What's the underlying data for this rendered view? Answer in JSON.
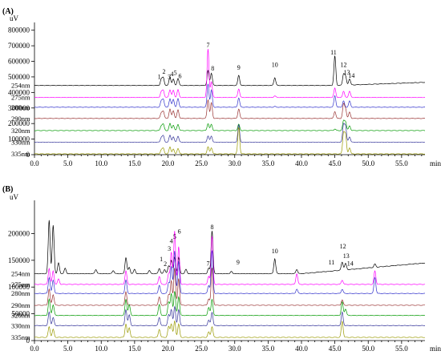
{
  "chart_data": [
    {
      "type": "line",
      "panel_label": "(A)",
      "ylabel": "uV",
      "xlabel": "min",
      "xlim": [
        0,
        58.5
      ],
      "ylim": [
        0,
        850000
      ],
      "x_ticks": [
        0.0,
        5.0,
        10.0,
        15.0,
        20.0,
        25.0,
        30.0,
        35.0,
        40.0,
        45.0,
        50.0,
        55.0
      ],
      "x_tick_labels": [
        "0.0",
        "5.0",
        "10.0",
        "15.0",
        "20.0",
        "25.0",
        "30.0",
        "35.0",
        "40.0",
        "45.0",
        "50.0",
        "55.0"
      ],
      "y_ticks": [
        0,
        100000,
        200000,
        300000,
        400000,
        500000,
        600000,
        700000,
        800000
      ],
      "y_tick_labels": [
        "0",
        "100000",
        "200000",
        "300000",
        "400000",
        "500000",
        "600000",
        "700000",
        "800000"
      ],
      "series": [
        {
          "name": "254nm",
          "color": "#000000",
          "baseline": 445000,
          "peaks": [
            [
              19.0,
              40000
            ],
            [
              19.3,
              48000
            ],
            [
              20.3,
              55000
            ],
            [
              20.8,
              40000
            ],
            [
              21.5,
              45000
            ],
            [
              26.0,
              95000
            ],
            [
              26.5,
              80000
            ],
            [
              30.6,
              65000
            ],
            [
              36.0,
              50000
            ],
            [
              45.0,
              190000
            ],
            [
              46.3,
              70000
            ],
            [
              46.6,
              55000
            ],
            [
              47.2,
              40000
            ]
          ],
          "drift": [
            [
              45.5,
              0
            ],
            [
              58.5,
              20000
            ]
          ]
        },
        {
          "name": "275nm",
          "color": "#ff00ff",
          "baseline": 368000,
          "peaks": [
            [
              19.0,
              35000
            ],
            [
              19.3,
              45000
            ],
            [
              20.3,
              50000
            ],
            [
              20.8,
              45000
            ],
            [
              21.5,
              50000
            ],
            [
              26.0,
              310000
            ],
            [
              26.5,
              100000
            ],
            [
              30.6,
              55000
            ],
            [
              36.0,
              10000
            ],
            [
              45.0,
              60000
            ],
            [
              46.3,
              40000
            ],
            [
              47.2,
              40000
            ]
          ],
          "drift": []
        },
        {
          "name": "280nm",
          "color": "#3333cc",
          "baseline": 305000,
          "peaks": [
            [
              19.0,
              40000
            ],
            [
              19.3,
              50000
            ],
            [
              20.3,
              55000
            ],
            [
              20.8,
              50000
            ],
            [
              21.5,
              55000
            ],
            [
              26.0,
              150000
            ],
            [
              26.5,
              110000
            ],
            [
              30.6,
              60000
            ],
            [
              36.0,
              5000
            ],
            [
              45.0,
              75000
            ],
            [
              46.3,
              40000
            ],
            [
              47.2,
              40000
            ]
          ],
          "drift": []
        },
        {
          "name": "290nm",
          "color": "#993333",
          "baseline": 233000,
          "peaks": [
            [
              19.0,
              35000
            ],
            [
              19.3,
              45000
            ],
            [
              20.3,
              60000
            ],
            [
              20.8,
              50000
            ],
            [
              21.5,
              55000
            ],
            [
              26.0,
              120000
            ],
            [
              26.5,
              100000
            ],
            [
              30.6,
              60000
            ],
            [
              45.0,
              45000
            ],
            [
              46.3,
              90000
            ],
            [
              46.6,
              60000
            ],
            [
              47.2,
              40000
            ]
          ],
          "drift": []
        },
        {
          "name": "320nm",
          "color": "#009900",
          "baseline": 155000,
          "peaks": [
            [
              19.0,
              30000
            ],
            [
              19.3,
              40000
            ],
            [
              20.3,
              45000
            ],
            [
              20.8,
              35000
            ],
            [
              21.5,
              40000
            ],
            [
              26.0,
              45000
            ],
            [
              26.5,
              40000
            ],
            [
              30.6,
              40000
            ],
            [
              45.0,
              10000
            ],
            [
              46.3,
              60000
            ],
            [
              46.6,
              55000
            ],
            [
              47.2,
              30000
            ]
          ],
          "drift": []
        },
        {
          "name": "330nm",
          "color": "#333399",
          "baseline": 80000,
          "peaks": [
            [
              19.0,
              30000
            ],
            [
              19.3,
              40000
            ],
            [
              20.3,
              45000
            ],
            [
              20.8,
              35000
            ],
            [
              21.5,
              40000
            ],
            [
              26.0,
              40000
            ],
            [
              26.5,
              40000
            ],
            [
              30.6,
              110000
            ],
            [
              46.3,
              110000
            ],
            [
              46.6,
              100000
            ],
            [
              47.2,
              35000
            ]
          ],
          "drift": []
        },
        {
          "name": "335nm",
          "color": "#999900",
          "baseline": 5000,
          "peaks": [
            [
              19.0,
              25000
            ],
            [
              19.3,
              35000
            ],
            [
              20.3,
              45000
            ],
            [
              20.8,
              30000
            ],
            [
              21.5,
              35000
            ],
            [
              26.0,
              45000
            ],
            [
              26.5,
              40000
            ],
            [
              30.6,
              170000
            ],
            [
              46.3,
              130000
            ],
            [
              46.6,
              120000
            ],
            [
              47.2,
              40000
            ]
          ],
          "drift": []
        }
      ],
      "annotations": [
        {
          "text": "1",
          "x": 18.7,
          "y": 487000
        },
        {
          "text": "2",
          "x": 19.4,
          "y": 520000
        },
        {
          "text": "3",
          "x": 20.2,
          "y": 487000
        },
        {
          "text": "4",
          "x": 20.6,
          "y": 505000
        },
        {
          "text": "5",
          "x": 21.1,
          "y": 512000
        },
        {
          "text": "6",
          "x": 21.8,
          "y": 492000
        },
        {
          "text": "7",
          "x": 26.0,
          "y": 690000
        },
        {
          "text": "8",
          "x": 26.7,
          "y": 540000
        },
        {
          "text": "9",
          "x": 30.6,
          "y": 545000
        },
        {
          "text": "10",
          "x": 36.0,
          "y": 565000
        },
        {
          "text": "11",
          "x": 44.8,
          "y": 645000
        },
        {
          "text": "12",
          "x": 46.3,
          "y": 565000
        },
        {
          "text": "13",
          "x": 46.8,
          "y": 515000
        },
        {
          "text": "14",
          "x": 47.5,
          "y": 495000
        }
      ]
    },
    {
      "type": "line",
      "panel_label": "(B)",
      "ylabel": "uV",
      "xlabel": "min",
      "xlim": [
        0,
        58.5
      ],
      "ylim": [
        0,
        262000
      ],
      "x_ticks": [
        0.0,
        5.0,
        10.0,
        15.0,
        20.0,
        25.0,
        30.0,
        35.0,
        40.0,
        45.0,
        50.0,
        55.0
      ],
      "x_tick_labels": [
        "0.0",
        "5.0",
        "10.0",
        "15.0",
        "20.0",
        "25.0",
        "30.0",
        "35.0",
        "40.0",
        "45.0",
        "50.0",
        "55.0"
      ],
      "y_ticks": [
        0,
        50000,
        100000,
        150000,
        200000
      ],
      "y_tick_labels": [
        "0",
        "50000",
        "100000",
        "150000",
        "200000"
      ],
      "series": [
        {
          "name": "254nm",
          "color": "#000000",
          "baseline": 125000,
          "peaks": [
            [
              2.2,
              100000
            ],
            [
              2.8,
              90000
            ],
            [
              3.6,
              20000
            ],
            [
              4.6,
              10000
            ],
            [
              9.2,
              8000
            ],
            [
              11.8,
              6000
            ],
            [
              13.7,
              30000
            ],
            [
              14.2,
              12000
            ],
            [
              15.0,
              8000
            ],
            [
              17.2,
              6000
            ],
            [
              18.7,
              10000
            ],
            [
              19.5,
              8000
            ],
            [
              20.1,
              14000
            ],
            [
              20.5,
              25000
            ],
            [
              21.0,
              30000
            ],
            [
              21.6,
              30000
            ],
            [
              22.7,
              8000
            ],
            [
              26.1,
              10000
            ],
            [
              26.6,
              80000
            ],
            [
              29.5,
              4000
            ],
            [
              36.0,
              28000
            ],
            [
              39.3,
              8000
            ],
            [
              46.1,
              15000
            ],
            [
              46.6,
              12000
            ],
            [
              51.0,
              6000
            ]
          ],
          "drift": [
            [
              40,
              0
            ],
            [
              58.5,
              20000
            ]
          ]
        },
        {
          "name": "275nm",
          "color": "#ff00ff",
          "baseline": 105000,
          "peaks": [
            [
              2.2,
              30000
            ],
            [
              2.8,
              25000
            ],
            [
              3.6,
              10000
            ],
            [
              13.7,
              25000
            ],
            [
              18.7,
              15000
            ],
            [
              20.1,
              20000
            ],
            [
              20.5,
              60000
            ],
            [
              21.0,
              100000
            ],
            [
              21.6,
              70000
            ],
            [
              26.1,
              15000
            ],
            [
              26.6,
              90000
            ],
            [
              39.3,
              20000
            ],
            [
              46.1,
              8000
            ],
            [
              51.0,
              25000
            ]
          ],
          "drift": []
        },
        {
          "name": "280nm",
          "color": "#3333cc",
          "baseline": 88000,
          "peaks": [
            [
              2.2,
              30000
            ],
            [
              2.8,
              25000
            ],
            [
              13.7,
              25000
            ],
            [
              18.7,
              15000
            ],
            [
              20.1,
              20000
            ],
            [
              20.5,
              50000
            ],
            [
              21.0,
              80000
            ],
            [
              21.6,
              60000
            ],
            [
              26.1,
              15000
            ],
            [
              26.6,
              80000
            ],
            [
              39.3,
              8000
            ],
            [
              46.1,
              8000
            ],
            [
              51.0,
              30000
            ]
          ],
          "drift": []
        },
        {
          "name": "290nm",
          "color": "#993333",
          "baseline": 66000,
          "peaks": [
            [
              2.2,
              30000
            ],
            [
              2.8,
              20000
            ],
            [
              13.7,
              25000
            ],
            [
              18.7,
              15000
            ],
            [
              20.1,
              20000
            ],
            [
              20.5,
              45000
            ],
            [
              21.0,
              70000
            ],
            [
              21.6,
              50000
            ],
            [
              26.1,
              12000
            ],
            [
              26.6,
              70000
            ],
            [
              46.1,
              10000
            ]
          ],
          "drift": []
        },
        {
          "name": "320nm",
          "color": "#009900",
          "baseline": 47000,
          "peaks": [
            [
              2.2,
              30000
            ],
            [
              2.8,
              20000
            ],
            [
              13.7,
              30000
            ],
            [
              14.2,
              20000
            ],
            [
              18.7,
              20000
            ],
            [
              20.1,
              25000
            ],
            [
              20.5,
              40000
            ],
            [
              21.0,
              45000
            ],
            [
              21.6,
              35000
            ],
            [
              26.1,
              15000
            ],
            [
              26.6,
              30000
            ],
            [
              46.1,
              25000
            ],
            [
              46.6,
              12000
            ]
          ],
          "drift": []
        },
        {
          "name": "330nm",
          "color": "#333399",
          "baseline": 28000,
          "peaks": [
            [
              2.2,
              25000
            ],
            [
              2.8,
              15000
            ],
            [
              13.7,
              30000
            ],
            [
              14.2,
              20000
            ],
            [
              18.7,
              15000
            ],
            [
              20.1,
              20000
            ],
            [
              20.5,
              30000
            ],
            [
              21.0,
              35000
            ],
            [
              21.6,
              30000
            ],
            [
              26.1,
              10000
            ],
            [
              26.6,
              25000
            ],
            [
              46.1,
              25000
            ]
          ],
          "drift": []
        },
        {
          "name": "335nm",
          "color": "#999900",
          "baseline": 6000,
          "peaks": [
            [
              2.2,
              20000
            ],
            [
              2.8,
              15000
            ],
            [
              13.7,
              25000
            ],
            [
              14.2,
              18000
            ],
            [
              18.7,
              15000
            ],
            [
              20.1,
              20000
            ],
            [
              20.5,
              25000
            ],
            [
              21.0,
              30000
            ],
            [
              21.6,
              25000
            ],
            [
              26.1,
              10000
            ],
            [
              26.6,
              20000
            ],
            [
              46.1,
              30000
            ]
          ],
          "drift": []
        }
      ],
      "annotations": [
        {
          "text": "1",
          "x": 19.0,
          "y": 148000
        },
        {
          "text": "2",
          "x": 19.6,
          "y": 139000
        },
        {
          "text": "3",
          "x": 20.2,
          "y": 168000
        },
        {
          "text": "4",
          "x": 20.5,
          "y": 182000
        },
        {
          "text": "5",
          "x": 21.0,
          "y": 190000
        },
        {
          "text": "6",
          "x": 21.7,
          "y": 200000
        },
        {
          "text": "7",
          "x": 26.0,
          "y": 140000
        },
        {
          "text": "8",
          "x": 26.6,
          "y": 208000
        },
        {
          "text": "9",
          "x": 30.5,
          "y": 142000
        },
        {
          "text": "10",
          "x": 36.0,
          "y": 163000
        },
        {
          "text": "11",
          "x": 44.5,
          "y": 142000
        },
        {
          "text": "12",
          "x": 46.2,
          "y": 172000
        },
        {
          "text": "13",
          "x": 46.7,
          "y": 154000
        },
        {
          "text": "14",
          "x": 47.3,
          "y": 140000
        }
      ]
    }
  ]
}
